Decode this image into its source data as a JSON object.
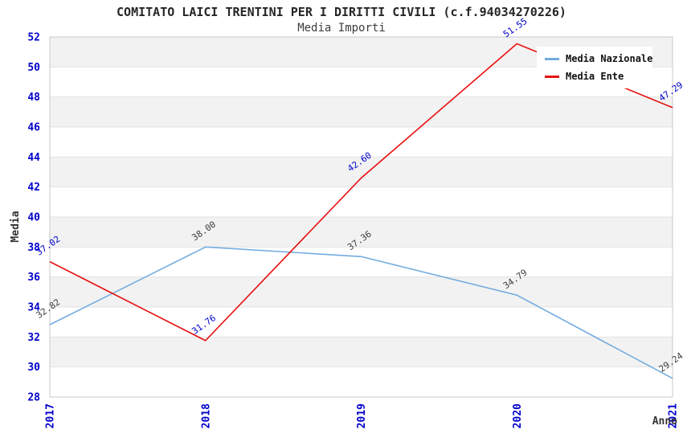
{
  "header": {
    "title": "COMITATO LAICI TRENTINI PER I DIRITTI CIVILI (c.f.94034270226)",
    "subtitle": "Media Importi"
  },
  "chart_data": {
    "type": "line",
    "title": "COMITATO LAICI TRENTINI PER I DIRITTI CIVILI (c.f.94034270226)",
    "subtitle": "Media Importi",
    "categories": [
      "2017",
      "2018",
      "2019",
      "2020",
      "2021"
    ],
    "series": [
      {
        "name": "Media Nazionale",
        "values": [
          32.82,
          38.0,
          37.36,
          34.79,
          29.24
        ],
        "color": "#73ace0",
        "label_color": "#3d3d3d"
      },
      {
        "name": "Media Ente",
        "values": [
          37.02,
          31.76,
          42.6,
          51.55,
          47.29
        ],
        "color": "#e81010",
        "label_color": "#0000cc"
      }
    ],
    "xlabel": "Anno",
    "ylabel": "Media",
    "ylim": [
      28,
      52
    ],
    "ytick_step": 2,
    "y_tick_labels": [
      52,
      50,
      48,
      46,
      44,
      42,
      40,
      38,
      36,
      34,
      32,
      30,
      28
    ],
    "grid": true,
    "band_colors": [
      "#f2f2f2",
      "#ffffff"
    ],
    "grid_color": "#e3e3e3",
    "border_color": "#c9c9c9",
    "tick_color": "#0000cc",
    "legend_position": "top-right"
  }
}
